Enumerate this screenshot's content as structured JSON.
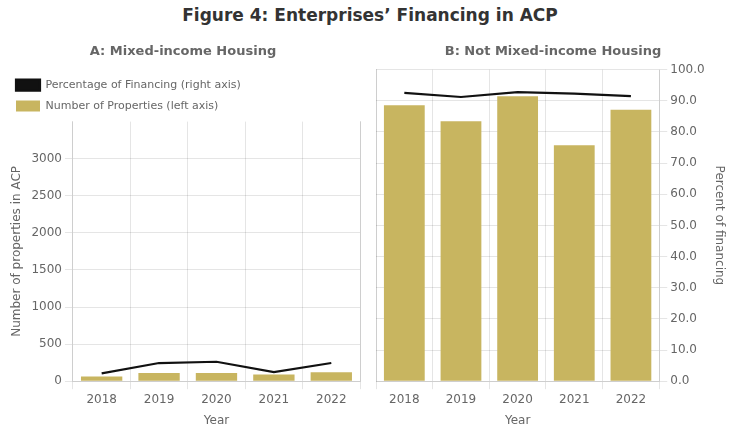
{
  "title": "Figure 4: Enterprises’ Financing in ACP",
  "chart_data": [
    {
      "type": "bar",
      "title": "A: Mixed-income Housing",
      "categories": [
        "2018",
        "2019",
        "2020",
        "2021",
        "2022"
      ],
      "series": [
        {
          "name": "Number of Properties (left axis)",
          "type": "bar",
          "color": "#C8B560",
          "values": [
            65,
            110,
            110,
            90,
            120
          ]
        },
        {
          "name": "Percentage of Financing (right axis)",
          "type": "line",
          "color": "#111111",
          "axis": "y2",
          "values": [
            3.0,
            7.0,
            7.5,
            3.5,
            7.0
          ]
        }
      ],
      "xlabel": "Year",
      "ylabel": "Number of properties in ACP",
      "ylim": [
        0,
        3500
      ],
      "yticks": [
        0,
        500,
        1000,
        1500,
        2000,
        2500,
        3000
      ],
      "y2lim": [
        0,
        100
      ],
      "y2ticks": [],
      "grid": true,
      "legend": "upper left"
    },
    {
      "type": "bar",
      "title": "B: Not Mixed-income Housing",
      "categories": [
        "2018",
        "2019",
        "2020",
        "2021",
        "2022"
      ],
      "series": [
        {
          "type": "bar",
          "color": "#C8B560",
          "values": [
            3100,
            2920,
            3200,
            2650,
            3050
          ]
        },
        {
          "type": "line",
          "color": "#111111",
          "axis": "y2",
          "values": [
            92.5,
            91.2,
            92.8,
            92.3,
            91.5
          ]
        }
      ],
      "xlabel": "Year",
      "y2label": "Percent of financing",
      "ylim": [
        0,
        3500
      ],
      "y2lim": [
        0,
        100
      ],
      "y2ticks": [
        {
          "value": 0,
          "label": "0.0"
        },
        {
          "value": 10,
          "label": "10.0"
        },
        {
          "value": 20,
          "label": "20.0"
        },
        {
          "value": 30,
          "label": "30.0"
        },
        {
          "value": 40,
          "label": "40.0"
        },
        {
          "value": 50,
          "label": "50.0"
        },
        {
          "value": 60,
          "label": "60.0"
        },
        {
          "value": 70,
          "label": "70.0"
        },
        {
          "value": 80,
          "label": "80.0"
        },
        {
          "value": 90,
          "label": "90.0"
        },
        {
          "value": 100,
          "label": "100.0"
        }
      ],
      "grid": true
    }
  ]
}
